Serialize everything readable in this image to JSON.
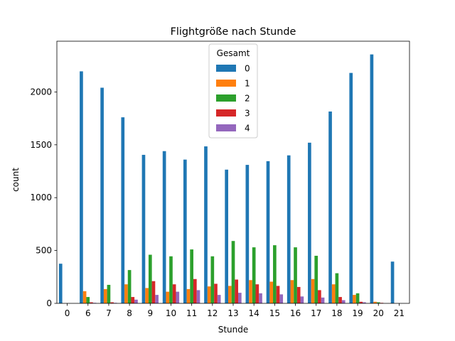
{
  "chart_data": {
    "type": "bar",
    "title": "Flightgröße nach Stunde",
    "xlabel": "Stunde",
    "ylabel": "count",
    "ylim": [
      0,
      2480
    ],
    "yticks": [
      0,
      500,
      1000,
      1500,
      2000
    ],
    "grid": false,
    "legend": {
      "title": "Gesamt",
      "placement": "top-center"
    },
    "categories": [
      "0",
      "6",
      "7",
      "8",
      "9",
      "10",
      "11",
      "12",
      "13",
      "14",
      "15",
      "16",
      "17",
      "18",
      "19",
      "20",
      "21"
    ],
    "series": [
      {
        "name": "0",
        "color": "#1f77b4",
        "values": [
          375,
          2195,
          2040,
          1760,
          1405,
          1440,
          1360,
          1485,
          1265,
          1310,
          1345,
          1400,
          1520,
          1815,
          2180,
          2355,
          395
        ]
      },
      {
        "name": "1",
        "color": "#ff7f0e",
        "values": [
          0,
          115,
          135,
          180,
          145,
          110,
          135,
          160,
          165,
          220,
          205,
          220,
          230,
          180,
          80,
          15,
          0
        ]
      },
      {
        "name": "2",
        "color": "#2ca02c",
        "values": [
          0,
          60,
          175,
          315,
          460,
          445,
          510,
          445,
          590,
          530,
          550,
          530,
          450,
          285,
          95,
          10,
          0
        ]
      },
      {
        "name": "3",
        "color": "#d62728",
        "values": [
          0,
          10,
          10,
          60,
          210,
          180,
          230,
          185,
          225,
          180,
          165,
          155,
          125,
          60,
          15,
          5,
          0
        ]
      },
      {
        "name": "4",
        "color": "#9467bd",
        "values": [
          0,
          5,
          5,
          35,
          80,
          110,
          125,
          80,
          100,
          95,
          85,
          65,
          55,
          30,
          10,
          0,
          0
        ]
      }
    ]
  }
}
